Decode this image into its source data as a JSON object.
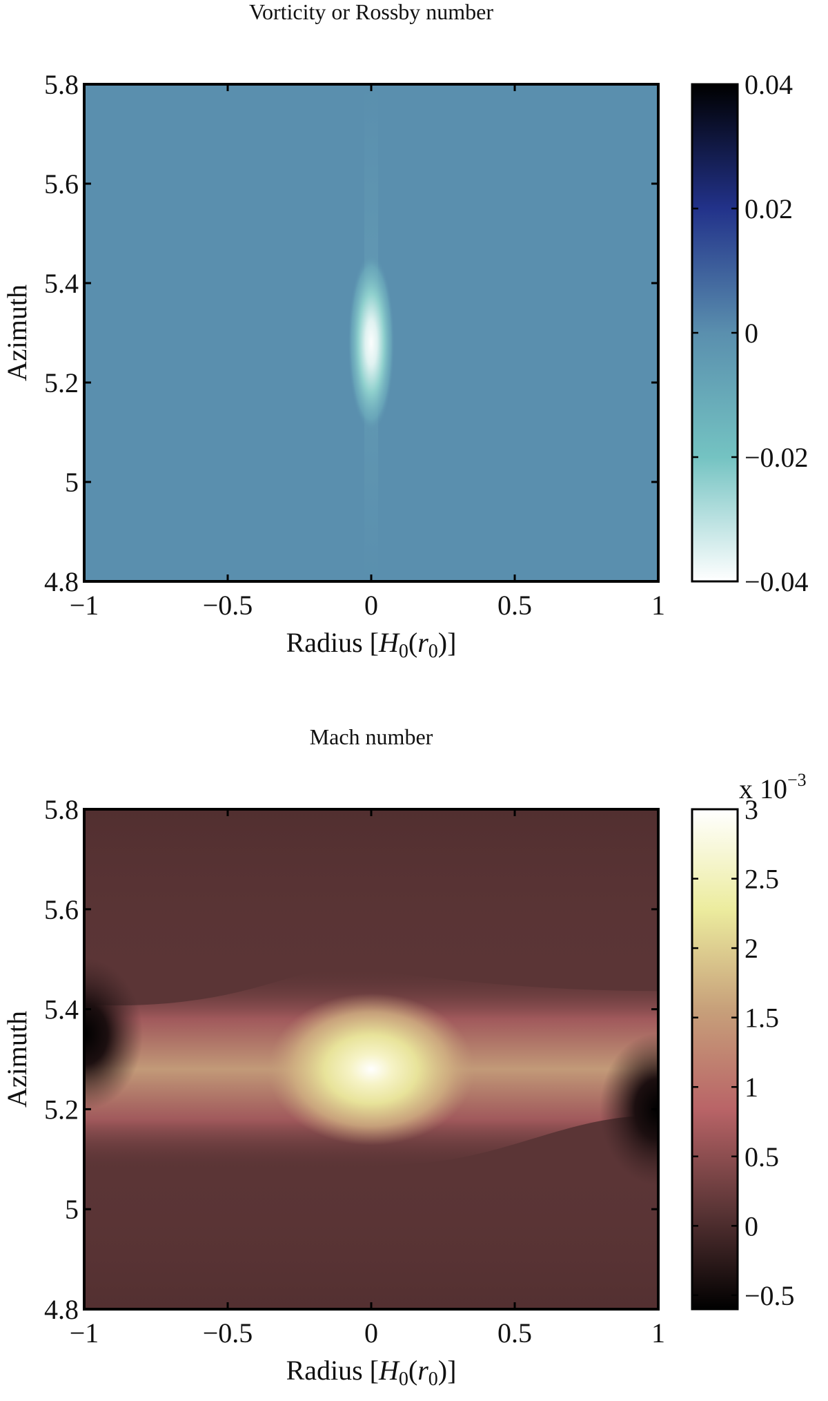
{
  "chart_data": [
    {
      "type": "heatmap",
      "title": "Vorticity or Rossby number",
      "xlabel": {
        "base": "Radius [",
        "H": "H",
        "sub0": "0",
        "open": "(",
        "r": "r",
        "sub1": "0",
        "close": ")]"
      },
      "ylabel": "Azimuth",
      "xlim": [
        -1,
        1
      ],
      "ylim": [
        4.8,
        5.8
      ],
      "xticks": [
        -1,
        -0.5,
        0,
        0.5,
        1
      ],
      "xtick_labels": [
        "−1",
        "−0.5",
        "0",
        "0.5",
        "1"
      ],
      "yticks": [
        4.8,
        5,
        5.2,
        5.4,
        5.6,
        5.8
      ],
      "ytick_labels": [
        "4.8",
        "5",
        "5.2",
        "5.4",
        "5.6",
        "5.8"
      ],
      "background_color": "#5a8fae",
      "features": [
        {
          "kind": "minimum",
          "x": 0.0,
          "y": 5.28,
          "value": -0.04
        }
      ],
      "colorbar": {
        "limits": [
          -0.04,
          0.04
        ],
        "ticks": [
          -0.04,
          -0.02,
          0,
          0.02,
          0.04
        ],
        "tick_labels": [
          "−0.04",
          "−0.02",
          "0",
          "0.02",
          "0.04"
        ],
        "exponent": "",
        "colors": [
          "#ffffff",
          "#74c3c2",
          "#5a8fae",
          "#22328a",
          "#000000"
        ]
      }
    },
    {
      "type": "heatmap",
      "title": "Mach number",
      "xlabel": {
        "base": "Radius [",
        "H": "H",
        "sub0": "0",
        "open": "(",
        "r": "r",
        "sub1": "0",
        "close": ")]"
      },
      "ylabel": "Azimuth",
      "xlim": [
        -1,
        1
      ],
      "ylim": [
        4.8,
        5.8
      ],
      "xticks": [
        -1,
        -0.5,
        0,
        0.5,
        1
      ],
      "xtick_labels": [
        "−1",
        "−0.5",
        "0",
        "0.5",
        "1"
      ],
      "yticks": [
        4.8,
        5,
        5.2,
        5.4,
        5.6,
        5.8
      ],
      "ytick_labels": [
        "4.8",
        "5",
        "5.2",
        "5.4",
        "5.6",
        "5.8"
      ],
      "background_color": "#5b3536",
      "features": [
        {
          "kind": "maximum",
          "x": 0.0,
          "y": 5.28,
          "value": 3.0
        },
        {
          "kind": "band",
          "y": 5.25,
          "value": 1.2
        },
        {
          "kind": "minimum",
          "x": -1.0,
          "y": 5.35,
          "value": -0.5
        },
        {
          "kind": "minimum",
          "x": 1.0,
          "y": 5.2,
          "value": -0.5
        }
      ],
      "colorbar": {
        "limits": [
          -0.6,
          3.0
        ],
        "ticks": [
          -0.5,
          0,
          0.5,
          1,
          1.5,
          2,
          2.5,
          3
        ],
        "tick_labels": [
          "−0.5",
          "0",
          "0.5",
          "1",
          "1.5",
          "2",
          "2.5",
          "3"
        ],
        "exponent": {
          "base": "x 10",
          "power": "−3"
        },
        "colors": [
          "#000000",
          "#5b3536",
          "#b96467",
          "#c7a07a",
          "#ecec9e",
          "#ffffff"
        ]
      }
    }
  ]
}
